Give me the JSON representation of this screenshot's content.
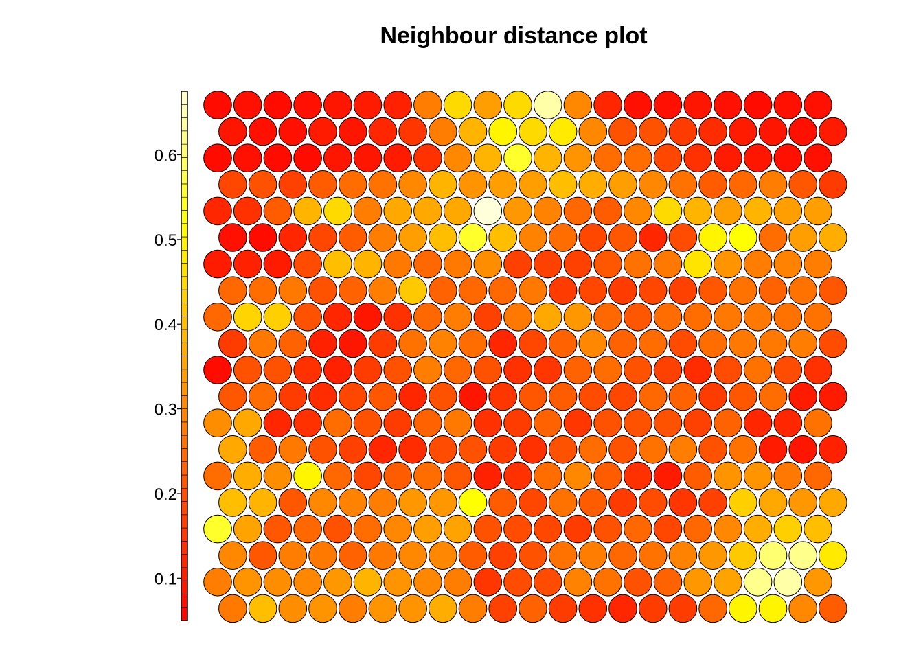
{
  "chart_data": {
    "type": "heatmap",
    "subtype": "hexagonal-som-neighbour-distance",
    "title": "Neighbour distance plot",
    "grid": {
      "columns": 21,
      "rows": 20,
      "topology": "hexagonal"
    },
    "color_scale": {
      "palette": "heat",
      "range": [
        0.05,
        0.675
      ],
      "ticks": [
        0.1,
        0.2,
        0.3,
        0.4,
        0.5,
        0.6
      ],
      "tick_labels": [
        "0.1",
        "0.2",
        "0.3",
        "0.4",
        "0.5",
        "0.6"
      ]
    },
    "rows_top_to_bottom": [
      [
        0.07,
        0.08,
        0.07,
        0.08,
        0.09,
        0.1,
        0.11,
        0.28,
        0.45,
        0.34,
        0.45,
        0.64,
        0.3,
        0.12,
        0.08,
        0.08,
        0.09,
        0.08,
        0.07,
        0.08,
        0.08
      ],
      [
        0.09,
        0.08,
        0.08,
        0.1,
        0.09,
        0.12,
        0.15,
        0.28,
        0.38,
        0.5,
        0.45,
        0.48,
        0.3,
        0.2,
        0.2,
        0.16,
        0.13,
        0.1,
        0.09,
        0.08,
        0.1
      ],
      [
        0.07,
        0.08,
        0.07,
        0.07,
        0.09,
        0.09,
        0.1,
        0.14,
        0.3,
        0.38,
        0.55,
        0.38,
        0.32,
        0.25,
        0.25,
        0.18,
        0.14,
        0.1,
        0.09,
        0.08,
        0.08
      ],
      [
        0.18,
        0.2,
        0.17,
        0.22,
        0.25,
        0.26,
        0.3,
        0.38,
        0.32,
        0.34,
        0.34,
        0.4,
        0.37,
        0.34,
        0.3,
        0.26,
        0.22,
        0.24,
        0.28,
        0.21,
        0.16
      ],
      [
        0.12,
        0.14,
        0.22,
        0.38,
        0.45,
        0.28,
        0.36,
        0.36,
        0.36,
        0.68,
        0.33,
        0.29,
        0.24,
        0.22,
        0.3,
        0.45,
        0.38,
        0.34,
        0.38,
        0.34,
        0.34
      ],
      [
        0.08,
        0.07,
        0.12,
        0.18,
        0.22,
        0.28,
        0.34,
        0.4,
        0.55,
        0.4,
        0.29,
        0.25,
        0.18,
        0.21,
        0.12,
        0.19,
        0.5,
        0.52,
        0.25,
        0.34,
        0.37
      ],
      [
        0.1,
        0.11,
        0.1,
        0.19,
        0.4,
        0.38,
        0.27,
        0.24,
        0.27,
        0.31,
        0.17,
        0.17,
        0.17,
        0.21,
        0.26,
        0.27,
        0.47,
        0.32,
        0.28,
        0.29,
        0.28
      ],
      [
        0.24,
        0.25,
        0.27,
        0.2,
        0.23,
        0.28,
        0.42,
        0.23,
        0.24,
        0.24,
        0.27,
        0.16,
        0.18,
        0.16,
        0.18,
        0.17,
        0.21,
        0.26,
        0.23,
        0.26,
        0.21
      ],
      [
        0.24,
        0.44,
        0.43,
        0.2,
        0.12,
        0.09,
        0.14,
        0.24,
        0.28,
        0.17,
        0.27,
        0.36,
        0.33,
        0.24,
        0.21,
        0.25,
        0.25,
        0.27,
        0.27,
        0.26,
        0.26
      ],
      [
        0.16,
        0.27,
        0.23,
        0.11,
        0.09,
        0.16,
        0.26,
        0.29,
        0.25,
        0.12,
        0.18,
        0.23,
        0.3,
        0.23,
        0.25,
        0.19,
        0.25,
        0.27,
        0.27,
        0.28,
        0.19
      ],
      [
        0.07,
        0.2,
        0.2,
        0.14,
        0.11,
        0.16,
        0.2,
        0.28,
        0.24,
        0.2,
        0.14,
        0.15,
        0.23,
        0.25,
        0.2,
        0.17,
        0.13,
        0.19,
        0.26,
        0.19,
        0.14
      ],
      [
        0.21,
        0.25,
        0.16,
        0.13,
        0.18,
        0.21,
        0.12,
        0.2,
        0.09,
        0.15,
        0.21,
        0.22,
        0.19,
        0.18,
        0.24,
        0.23,
        0.16,
        0.21,
        0.25,
        0.1,
        0.1
      ],
      [
        0.31,
        0.36,
        0.12,
        0.14,
        0.25,
        0.2,
        0.16,
        0.23,
        0.27,
        0.14,
        0.16,
        0.23,
        0.15,
        0.2,
        0.2,
        0.2,
        0.17,
        0.23,
        0.12,
        0.12,
        0.26
      ],
      [
        0.36,
        0.22,
        0.27,
        0.2,
        0.17,
        0.12,
        0.13,
        0.19,
        0.2,
        0.16,
        0.14,
        0.2,
        0.25,
        0.2,
        0.26,
        0.28,
        0.2,
        0.26,
        0.1,
        0.09,
        0.11
      ],
      [
        0.25,
        0.37,
        0.31,
        0.5,
        0.24,
        0.18,
        0.22,
        0.25,
        0.21,
        0.11,
        0.14,
        0.25,
        0.3,
        0.22,
        0.14,
        0.1,
        0.22,
        0.32,
        0.32,
        0.27,
        0.24
      ],
      [
        0.4,
        0.38,
        0.21,
        0.3,
        0.29,
        0.28,
        0.33,
        0.33,
        0.52,
        0.22,
        0.18,
        0.26,
        0.22,
        0.16,
        0.19,
        0.15,
        0.17,
        0.43,
        0.36,
        0.33,
        0.36
      ],
      [
        0.55,
        0.35,
        0.21,
        0.24,
        0.2,
        0.25,
        0.3,
        0.34,
        0.35,
        0.2,
        0.19,
        0.18,
        0.16,
        0.2,
        0.24,
        0.18,
        0.24,
        0.3,
        0.37,
        0.43,
        0.4
      ],
      [
        0.3,
        0.21,
        0.28,
        0.27,
        0.23,
        0.27,
        0.3,
        0.3,
        0.22,
        0.17,
        0.2,
        0.26,
        0.28,
        0.24,
        0.26,
        0.29,
        0.33,
        0.42,
        0.6,
        0.62,
        0.48
      ],
      [
        0.28,
        0.32,
        0.31,
        0.3,
        0.33,
        0.38,
        0.32,
        0.3,
        0.28,
        0.15,
        0.19,
        0.19,
        0.29,
        0.26,
        0.2,
        0.23,
        0.33,
        0.35,
        0.62,
        0.64,
        0.33
      ],
      [
        0.27,
        0.4,
        0.31,
        0.32,
        0.28,
        0.32,
        0.32,
        0.37,
        0.28,
        0.17,
        0.23,
        0.16,
        0.14,
        0.12,
        0.16,
        0.16,
        0.24,
        0.5,
        0.5,
        0.3,
        0.22
      ]
    ]
  }
}
